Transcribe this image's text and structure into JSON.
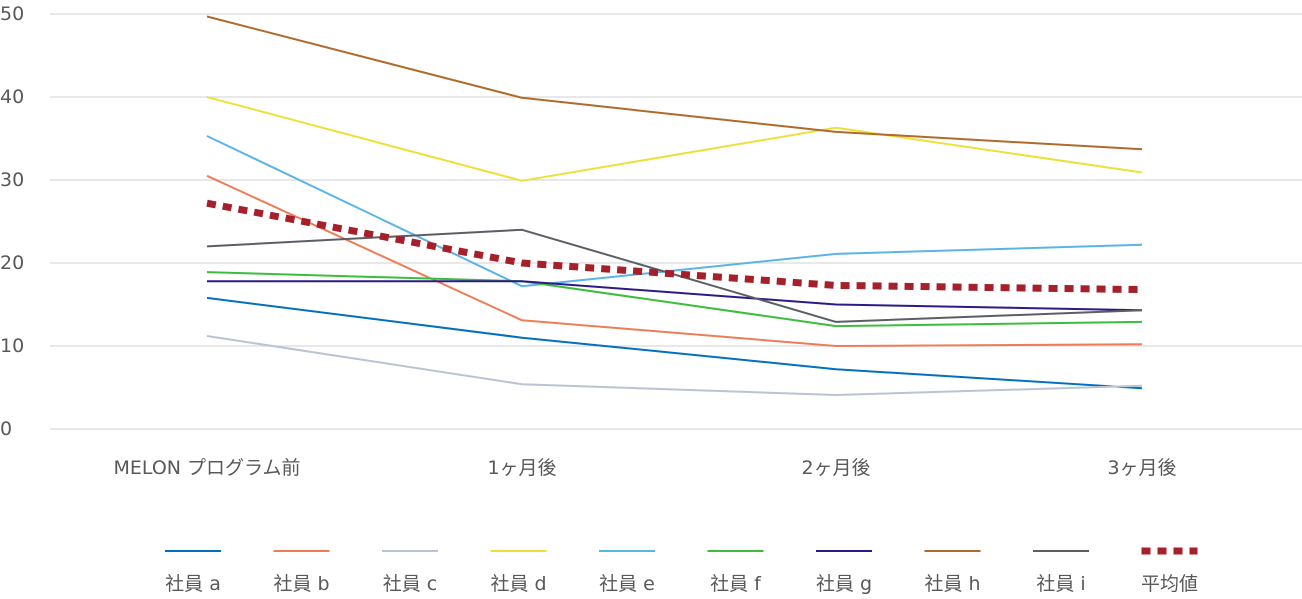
{
  "chart_data": {
    "type": "line",
    "categories": [
      "MELON プログラム前",
      "1ヶ月後",
      "2ヶ月後",
      "3ヶ月後"
    ],
    "ylim": [
      0,
      50
    ],
    "yticks": [
      "0",
      "10",
      "20",
      "30",
      "40",
      "50"
    ],
    "grid": true,
    "legend_position": "bottom",
    "series": [
      {
        "name": "社員 a",
        "color": "#0070C0",
        "dashed": false,
        "values": [
          15.8,
          11.0,
          7.2,
          4.9
        ]
      },
      {
        "name": "社員 b",
        "color": "#ED7D57",
        "dashed": false,
        "values": [
          30.5,
          13.1,
          10.0,
          10.2
        ]
      },
      {
        "name": "社員 c",
        "color": "#B8C4D4",
        "dashed": false,
        "values": [
          11.2,
          5.4,
          4.1,
          5.2
        ]
      },
      {
        "name": "社員 d",
        "color": "#EDE03A",
        "dashed": false,
        "values": [
          40.0,
          29.9,
          36.3,
          30.9
        ]
      },
      {
        "name": "社員 e",
        "color": "#5AB4E6",
        "dashed": false,
        "values": [
          35.3,
          17.2,
          21.1,
          22.2
        ]
      },
      {
        "name": "社員 f",
        "color": "#3CBE3C",
        "dashed": false,
        "values": [
          18.9,
          17.8,
          12.4,
          12.9
        ]
      },
      {
        "name": "社員 g",
        "color": "#2E1A86",
        "dashed": false,
        "values": [
          17.8,
          17.8,
          15.0,
          14.3
        ]
      },
      {
        "name": "社員 h",
        "color": "#B06A2A",
        "dashed": false,
        "values": [
          49.7,
          39.9,
          35.8,
          33.7
        ]
      },
      {
        "name": "社員 i",
        "color": "#5A5F66",
        "dashed": false,
        "values": [
          22.0,
          24.0,
          12.9,
          14.3
        ]
      },
      {
        "name": "平均値",
        "color": "#A5202A",
        "dashed": true,
        "values": [
          27.2,
          20.0,
          17.3,
          16.8
        ]
      }
    ]
  }
}
